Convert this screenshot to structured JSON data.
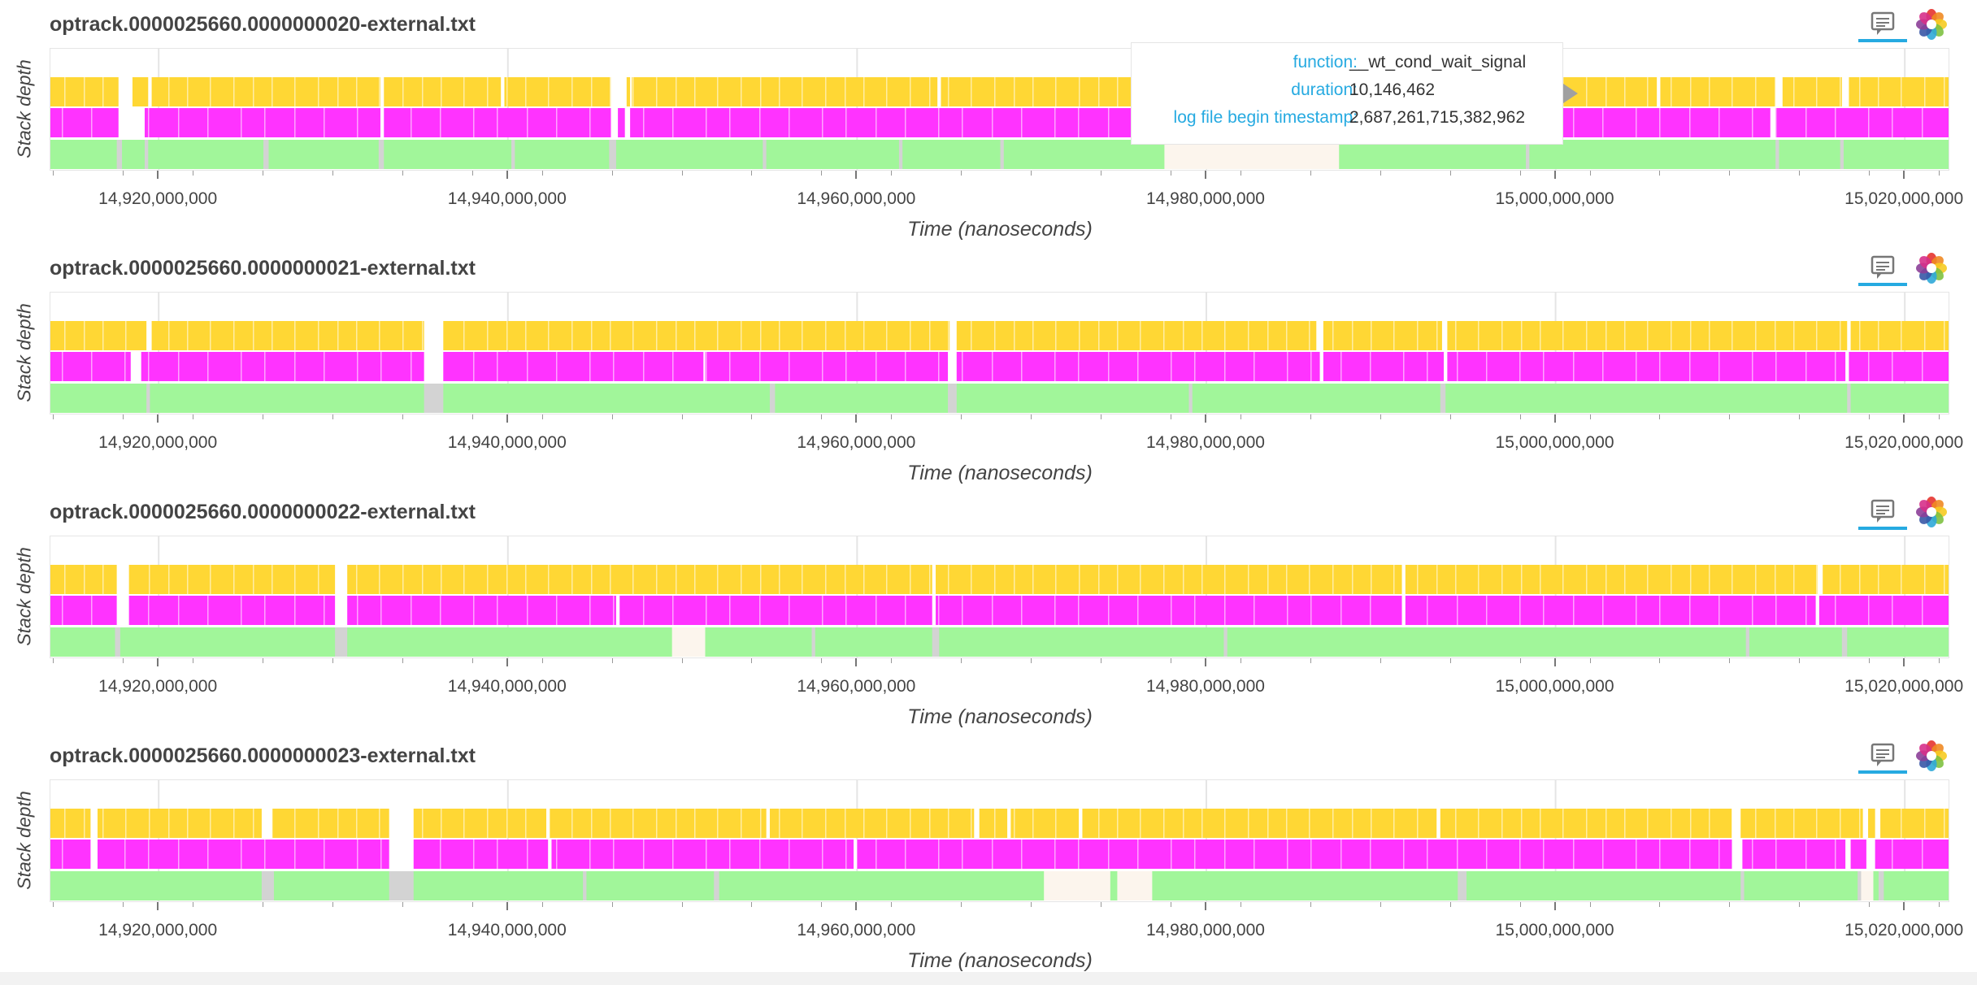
{
  "ylabel": "Stack depth",
  "xlabel": "Time (nanoseconds)",
  "colors": {
    "level1": "#a1f69a",
    "level2": "#ff33ff",
    "level3": "#ffd734",
    "gap": "#d3d3d3",
    "highlight": "#fcf5ed",
    "accent": "#26aae1"
  },
  "tooltip": {
    "rows": [
      {
        "key": "function:",
        "value": "__wt_cond_wait_signal"
      },
      {
        "key": "duration:",
        "value": "10,146,462"
      },
      {
        "key": "log file begin timestamp:",
        "value": "2,687,261,715,382,962"
      }
    ]
  },
  "toolbar": {
    "hover_tool": "hover-tool-icon",
    "logo": "bokeh-logo-icon"
  },
  "chart_data": [
    {
      "type": "bar",
      "title": "optrack.0000025660.0000000020-external.txt",
      "xlabel": "Time (nanoseconds)",
      "ylabel": "Stack depth",
      "xlim": [
        14913800000,
        15022600000
      ],
      "ylim": [
        0,
        3.6
      ],
      "x_ticks": [
        "14,920,000,000",
        "14,940,000,000",
        "14,960,000,000",
        "14,980,000,000",
        "15,000,000,000",
        "15,020,000,000"
      ],
      "levels": [
        {
          "depth": 1,
          "color": "#a1f69a",
          "gaps": [
            [
              14917600000,
              14917900000
            ],
            [
              14919200000,
              14919400000
            ],
            [
              14926000000,
              14926300000
            ],
            [
              14932600000,
              14932900000
            ],
            [
              14940200000,
              14940400000
            ],
            [
              14945800000,
              14946200000
            ],
            [
              14954600000,
              14954800000
            ],
            [
              14962400000,
              14962600000
            ],
            [
              14968200000,
              14968400000
            ],
            [
              14985800000,
              14986000000
            ],
            [
              14998300000,
              14998500000
            ],
            [
              15012600000,
              15012800000
            ],
            [
              15016300000,
              15016500000
            ]
          ]
        },
        {
          "depth": 2,
          "color": "#ff33ff",
          "gaps": [
            [
              14917700000,
              14919200000
            ],
            [
              14932700000,
              14932900000
            ],
            [
              14945900000,
              14946300000
            ],
            [
              14946700000,
              14947000000
            ],
            [
              15012300000,
              15012600000
            ]
          ]
        },
        {
          "depth": 3,
          "color": "#ffd734",
          "gaps": [
            [
              14917700000,
              14918500000
            ],
            [
              14919400000,
              14919600000
            ],
            [
              14932700000,
              14932900000
            ],
            [
              14939600000,
              14939800000
            ],
            [
              14945900000,
              14946800000
            ],
            [
              14947000000,
              14947100000
            ],
            [
              14964600000,
              14964800000
            ],
            [
              14976400000,
              14976600000
            ],
            [
              15005800000,
              15006000000
            ],
            [
              15012600000,
              15013000000
            ],
            [
              15016400000,
              15016800000
            ]
          ]
        }
      ],
      "highlight": [
        14977600000,
        14987600000
      ]
    },
    {
      "type": "bar",
      "title": "optrack.0000025660.0000000021-external.txt",
      "xlabel": "Time (nanoseconds)",
      "ylabel": "Stack depth",
      "xlim": [
        14913800000,
        15022600000
      ],
      "ylim": [
        0,
        3.6
      ],
      "x_ticks": [
        "14,920,000,000",
        "14,940,000,000",
        "14,960,000,000",
        "14,980,000,000",
        "15,000,000,000",
        "15,020,000,000"
      ],
      "levels": [
        {
          "depth": 1,
          "color": "#a1f69a",
          "gaps": [
            [
              14919300000,
              14919500000
            ],
            [
              14935200000,
              14936300000
            ],
            [
              14955000000,
              14955300000
            ],
            [
              14965200000,
              14965700000
            ],
            [
              14979000000,
              14979200000
            ],
            [
              14993400000,
              14993700000
            ],
            [
              15016700000,
              15016900000
            ]
          ]
        },
        {
          "depth": 2,
          "color": "#ff33ff",
          "gaps": [
            [
              14918400000,
              14919000000
            ],
            [
              14935200000,
              14936300000
            ],
            [
              14951200000,
              14951300000
            ],
            [
              14965200000,
              14965700000
            ],
            [
              14986500000,
              14986700000
            ],
            [
              14993600000,
              14993800000
            ],
            [
              15016600000,
              15016800000
            ]
          ]
        },
        {
          "depth": 3,
          "color": "#ffd734",
          "gaps": [
            [
              14919300000,
              14919600000
            ],
            [
              14935200000,
              14936300000
            ],
            [
              14965300000,
              14965700000
            ],
            [
              14986300000,
              14986700000
            ],
            [
              14993500000,
              14993800000
            ],
            [
              15016700000,
              15016900000
            ]
          ]
        }
      ]
    },
    {
      "type": "bar",
      "title": "optrack.0000025660.0000000022-external.txt",
      "xlabel": "Time (nanoseconds)",
      "ylabel": "Stack depth",
      "xlim": [
        14913800000,
        15022600000
      ],
      "ylim": [
        0,
        3.6
      ],
      "x_ticks": [
        "14,920,000,000",
        "14,940,000,000",
        "14,960,000,000",
        "14,980,000,000",
        "15,000,000,000",
        "15,020,000,000"
      ],
      "levels": [
        {
          "depth": 1,
          "color": "#a1f69a",
          "gaps": [
            [
              14917500000,
              14917800000
            ],
            [
              14930100000,
              14930800000
            ],
            [
              14950800000,
              14951000000
            ],
            [
              14957400000,
              14957600000
            ],
            [
              14964300000,
              14964700000
            ],
            [
              14981000000,
              14981200000
            ],
            [
              15010900000,
              15011100000
            ],
            [
              15016400000,
              15016700000
            ]
          ]
        },
        {
          "depth": 2,
          "color": "#ff33ff",
          "gaps": [
            [
              14917600000,
              14918300000
            ],
            [
              14930100000,
              14930800000
            ],
            [
              14946200000,
              14946400000
            ],
            [
              14964300000,
              14964500000
            ],
            [
              14991200000,
              14991400000
            ],
            [
              15014900000,
              15015100000
            ]
          ]
        },
        {
          "depth": 3,
          "color": "#ffd734",
          "gaps": [
            [
              14917600000,
              14918300000
            ],
            [
              14930100000,
              14930800000
            ],
            [
              14964300000,
              14964500000
            ],
            [
              14991200000,
              14991400000
            ],
            [
              15015000000,
              15015300000
            ]
          ]
        }
      ],
      "highlight": [
        14949400000,
        14951300000
      ]
    },
    {
      "type": "bar",
      "title": "optrack.0000025660.0000000023-external.txt",
      "xlabel": "Time (nanoseconds)",
      "ylabel": "Stack depth",
      "xlim": [
        14913800000,
        15022600000
      ],
      "ylim": [
        0,
        3.6
      ],
      "x_ticks": [
        "14,920,000,000",
        "14,940,000,000",
        "14,960,000,000",
        "14,980,000,000",
        "15,000,000,000",
        "15,020,000,000"
      ],
      "levels": [
        {
          "depth": 1,
          "color": "#a1f69a",
          "gaps": [
            [
              14925900000,
              14926600000
            ],
            [
              14933200000,
              14934600000
            ],
            [
              14944300000,
              14944500000
            ],
            [
              14951800000,
              14952100000
            ],
            [
              14994400000,
              14994900000
            ],
            [
              15010600000,
              15010800000
            ],
            [
              15017300000,
              15017600000
            ],
            [
              15018500000,
              15018800000
            ]
          ]
        },
        {
          "depth": 2,
          "color": "#ff33ff",
          "gaps": [
            [
              14916100000,
              14916500000
            ],
            [
              14933200000,
              14934600000
            ],
            [
              14942300000,
              14942500000
            ],
            [
              14959800000,
              14960000000
            ],
            [
              15010100000,
              15010700000
            ],
            [
              15016600000,
              15016900000
            ],
            [
              15017800000,
              15018300000
            ]
          ]
        },
        {
          "depth": 3,
          "color": "#ffd734",
          "gaps": [
            [
              14916100000,
              14916500000
            ],
            [
              14925900000,
              14926500000
            ],
            [
              14933200000,
              14934600000
            ],
            [
              14942200000,
              14942400000
            ],
            [
              14954800000,
              14955000000
            ],
            [
              14966700000,
              14967000000
            ],
            [
              14968600000,
              14968800000
            ],
            [
              14972700000,
              14972900000
            ],
            [
              14993200000,
              14993400000
            ],
            [
              15010100000,
              15010600000
            ],
            [
              15017600000,
              15017900000
            ],
            [
              15018300000,
              15018600000
            ]
          ]
        }
      ],
      "highlight_ranges": [
        [
          14970700000,
          14974500000
        ],
        [
          14974900000,
          14976900000
        ],
        [
          15017500000,
          15018200000
        ]
      ]
    }
  ]
}
